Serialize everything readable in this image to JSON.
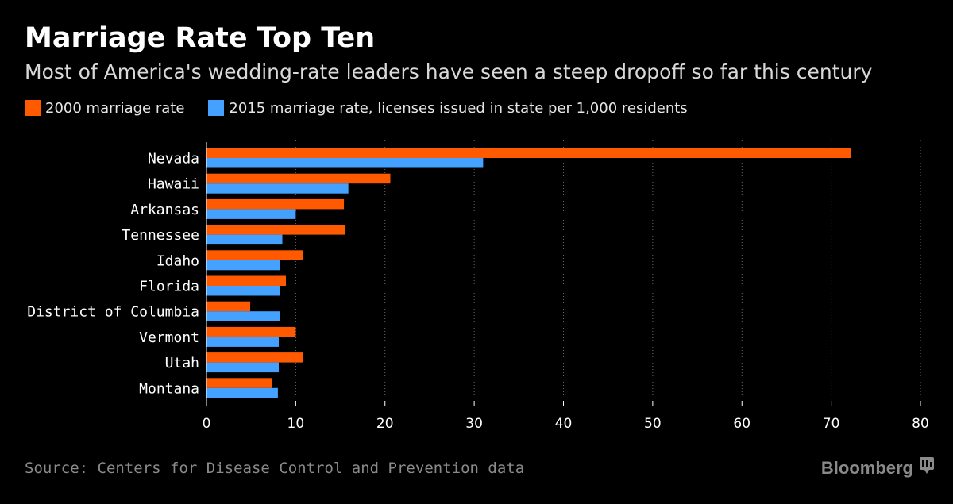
{
  "title": "Marriage Rate Top Ten",
  "subtitle": "Most of America's wedding-rate leaders have seen a steep dropoff so far this century",
  "legend": [
    {
      "label": "2000 marriage rate",
      "color": "#ff5a00"
    },
    {
      "label": "2015 marriage rate, licenses issued in state per 1,000 residents",
      "color": "#44a1ff"
    }
  ],
  "source": "Source: Centers for Disease Control and Prevention data",
  "brand": {
    "name": "Bloomberg",
    "icon": "bloomberg-terminal-icon"
  },
  "colors": {
    "background": "#000000",
    "series_2000": "#ff5a00",
    "series_2015": "#44a1ff"
  },
  "chart_data": {
    "type": "bar",
    "orientation": "horizontal",
    "title": "Marriage Rate Top Ten",
    "xlabel": "",
    "ylabel": "",
    "xlim": [
      0,
      80
    ],
    "ticks": [
      0,
      10,
      20,
      30,
      40,
      50,
      60,
      70,
      80
    ],
    "grid": true,
    "legend_position": "top",
    "categories": [
      "Nevada",
      "Hawaii",
      "Arkansas",
      "Tennessee",
      "Idaho",
      "Florida",
      "District of Columbia",
      "Vermont",
      "Utah",
      "Montana"
    ],
    "series": [
      {
        "name": "2000 marriage rate",
        "color": "#ff5a00",
        "values": [
          72.2,
          20.6,
          15.4,
          15.5,
          10.8,
          8.9,
          4.9,
          10.0,
          10.8,
          7.3
        ]
      },
      {
        "name": "2015 marriage rate, licenses issued in state per 1,000 residents",
        "color": "#44a1ff",
        "values": [
          31.0,
          15.9,
          10.0,
          8.5,
          8.2,
          8.2,
          8.2,
          8.1,
          8.1,
          8.0
        ]
      }
    ]
  }
}
